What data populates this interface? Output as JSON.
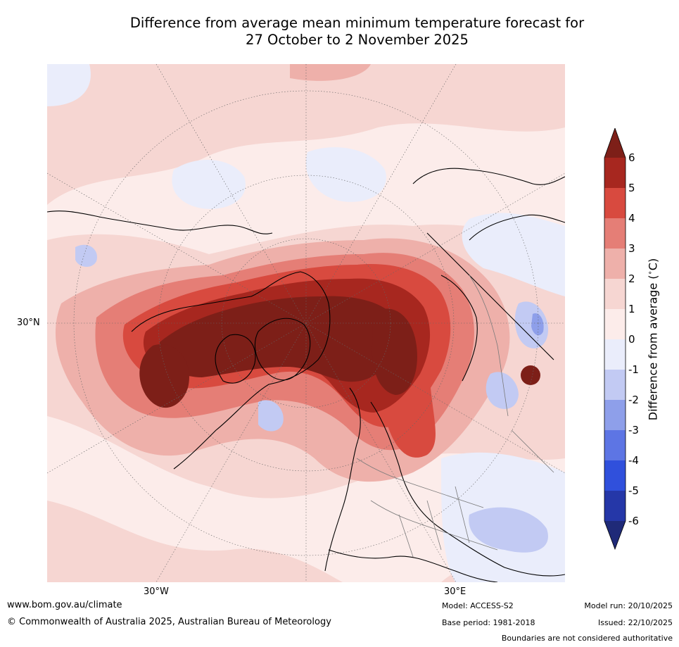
{
  "title": {
    "line1": "Difference from average mean minimum temperature forecast for",
    "line2": "27 October to 2 November 2025"
  },
  "map": {
    "projection": "north-polar-stereographic",
    "lat_labels": [
      "30°N"
    ],
    "lon_labels": [
      "30°W",
      "30°E"
    ]
  },
  "colorbar": {
    "title": "Difference from average (°C)",
    "title_pre": "Difference from average (",
    "title_unit": "°C",
    "title_post": ")",
    "ticks": [
      "6",
      "5",
      "4",
      "3",
      "2",
      "1",
      "0",
      "-1",
      "-2",
      "-3",
      "-4",
      "-5",
      "-6"
    ],
    "colors": {
      "over": "#7d1f18",
      "b5_6": "#a7271f",
      "b4_5": "#d84a3f",
      "b3_4": "#e57e76",
      "b2_3": "#eeb0aa",
      "b1_2": "#f6d6d2",
      "b0_1": "#fcecea",
      "bm1_0": "#eaedfb",
      "bm2_m1": "#c2caf3",
      "bm3_m2": "#8e9fea",
      "bm4_m3": "#5d75e4",
      "bm5_m4": "#3050dc",
      "bm6_m5": "#2537a8",
      "under": "#1f2a78"
    }
  },
  "footer": {
    "website": "www.bom.gov.au/climate",
    "copyright": "© Commonwealth of Australia 2025, Australian Bureau of Meteorology",
    "model": "Model: ACCESS-S2",
    "base_period": "Base period: 1981-2018",
    "model_run": "Model run: 20/10/2025",
    "issued": "Issued: 22/10/2025",
    "boundaries_note": "Boundaries are not considered authoritative"
  }
}
